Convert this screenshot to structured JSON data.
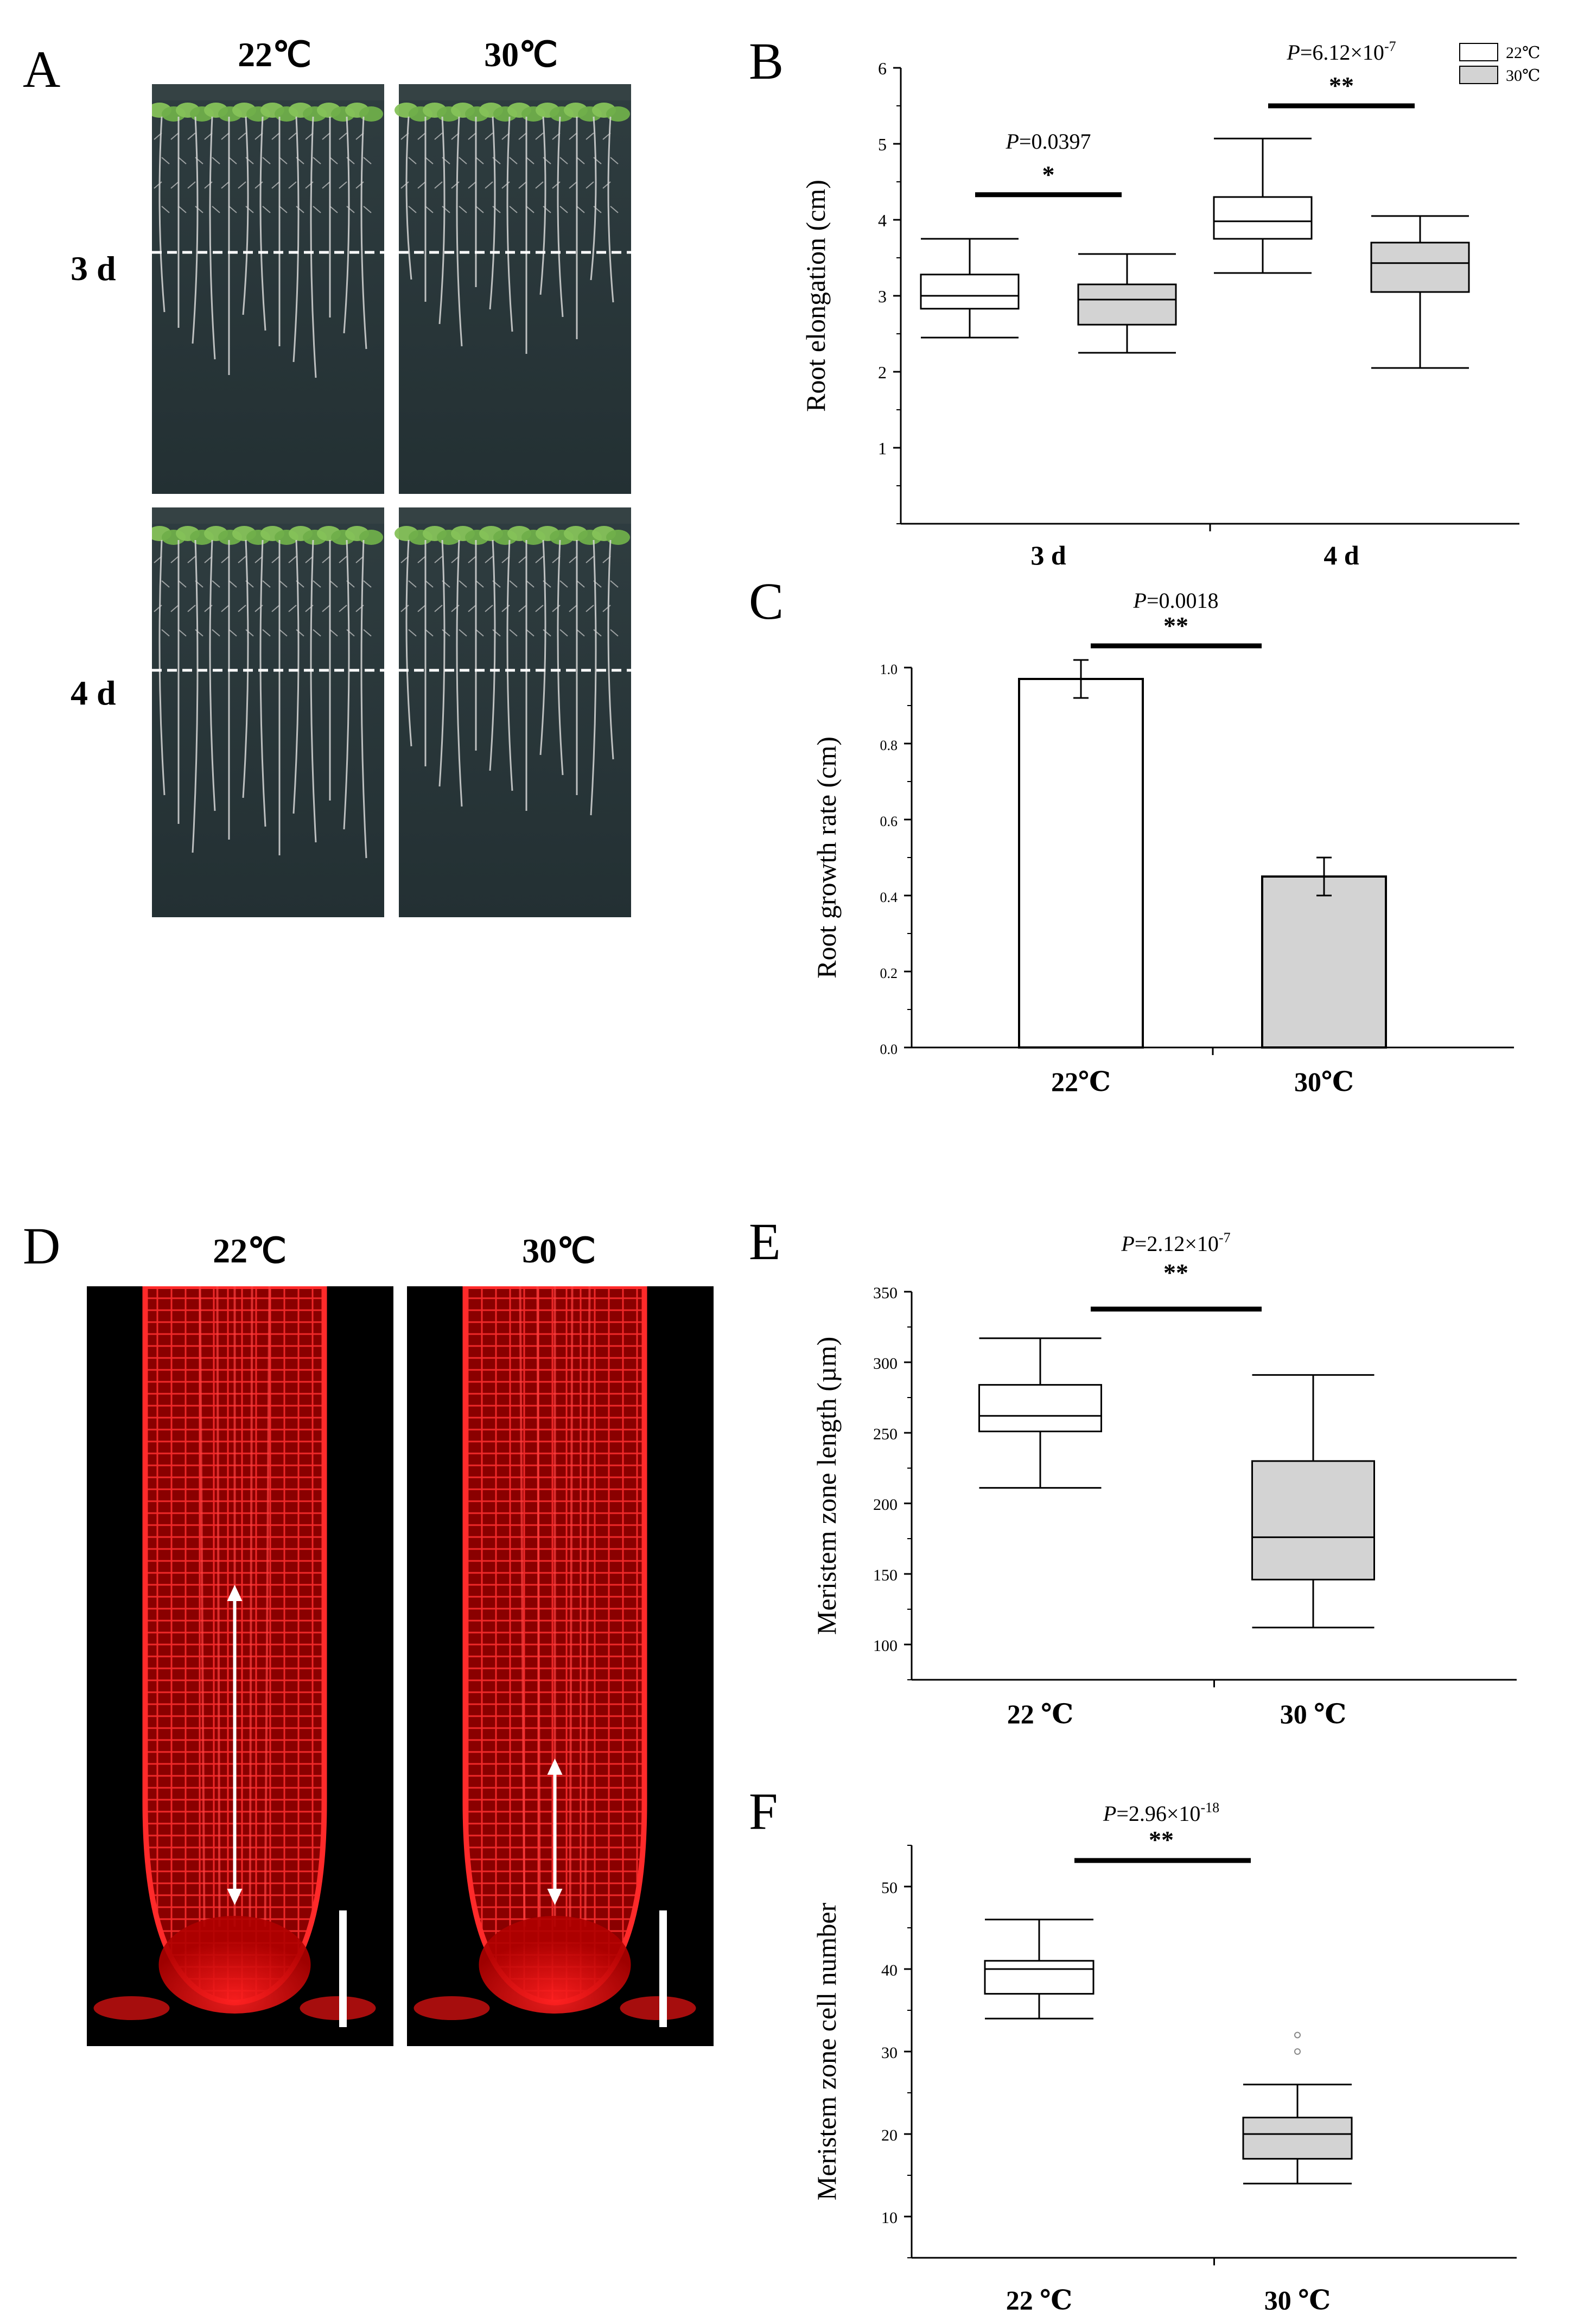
{
  "panelA": {
    "letter": "A",
    "col_labels": [
      "22℃",
      "30℃"
    ],
    "row_labels": [
      "3 d",
      "4 d"
    ]
  },
  "panelD": {
    "letter": "D",
    "col_labels": [
      "22℃",
      "30℃"
    ]
  },
  "colors": {
    "box_22": "#ffffff",
    "box_30": "#d3d3d3",
    "plate_bg": "#283538",
    "fluor_red": "#ff1a1a"
  },
  "chart_data": [
    {
      "id": "B",
      "letter": "B",
      "type": "box",
      "categories": [
        "3 d",
        "4 d"
      ],
      "ylabel": "Root elongation (cm)",
      "ylim": [
        0,
        6
      ],
      "yticks": [
        1,
        2,
        3,
        4,
        5,
        6
      ],
      "legend": {
        "placement": "top-right",
        "entries": [
          "22℃",
          "30℃"
        ]
      },
      "series": [
        {
          "name": "22℃",
          "boxes": [
            {
              "min": 2.45,
              "q1": 2.83,
              "median": 3.0,
              "q3": 3.28,
              "max": 3.75
            },
            {
              "min": 3.3,
              "q1": 3.75,
              "median": 3.98,
              "q3": 4.3,
              "max": 5.07
            }
          ]
        },
        {
          "name": "30℃",
          "boxes": [
            {
              "min": 2.25,
              "q1": 2.62,
              "median": 2.95,
              "q3": 3.15,
              "max": 3.55
            },
            {
              "min": 2.05,
              "q1": 3.05,
              "median": 3.43,
              "q3": 3.7,
              "max": 4.05
            }
          ]
        }
      ],
      "annotations": [
        {
          "group": 0,
          "p_prefix": "P",
          "p_value": "=0.0397",
          "p_exp": "",
          "stars": "*",
          "bar_y": 4.33
        },
        {
          "group": 1,
          "p_prefix": "P",
          "p_value": "=6.12×10",
          "p_exp": "-7",
          "stars": "**",
          "bar_y": 5.5
        }
      ]
    },
    {
      "id": "C",
      "letter": "C",
      "type": "bar",
      "categories": [
        "22℃",
        "30℃"
      ],
      "values": [
        0.97,
        0.45
      ],
      "errors": [
        0.05,
        0.05
      ],
      "ylabel": "Root growth rate (cm)",
      "ylim": [
        0,
        1.0
      ],
      "yticks": [
        "0.0",
        "0.2",
        "0.4",
        "0.6",
        "0.8",
        "1.0"
      ],
      "annotation": {
        "p_prefix": "P",
        "p_value": "=0.0018",
        "p_exp": "",
        "stars": "**"
      }
    },
    {
      "id": "E",
      "letter": "E",
      "type": "box",
      "categories": [
        "22 ℃",
        "30 ℃"
      ],
      "ylabel": "Meristem zone length (µm)",
      "ylim": [
        75,
        350
      ],
      "yticks": [
        100,
        150,
        200,
        250,
        300,
        350
      ],
      "boxes": [
        {
          "min": 211,
          "q1": 251,
          "median": 262,
          "q3": 284,
          "max": 317,
          "fill": "#ffffff"
        },
        {
          "min": 112,
          "q1": 146,
          "median": 176,
          "q3": 230,
          "max": 291,
          "fill": "#d3d3d3"
        }
      ],
      "annotation": {
        "p_prefix": "P",
        "p_value": "=2.12×10",
        "p_exp": "-7",
        "stars": "**"
      }
    },
    {
      "id": "F",
      "letter": "F",
      "type": "box",
      "categories": [
        "22 ℃",
        "30 ℃"
      ],
      "ylabel": "Meristem zone cell number",
      "ylim": [
        5,
        55
      ],
      "yticks": [
        10,
        20,
        30,
        40,
        50
      ],
      "boxes": [
        {
          "min": 34,
          "q1": 37,
          "median": 40,
          "q3": 41,
          "max": 46,
          "fill": "#ffffff",
          "outliers": []
        },
        {
          "min": 14,
          "q1": 17,
          "median": 20,
          "q3": 22,
          "max": 26,
          "fill": "#d3d3d3",
          "outliers": [
            30,
            32
          ]
        }
      ],
      "annotation": {
        "p_prefix": "P",
        "p_value": "=2.96×10",
        "p_exp": "-18",
        "stars": "**"
      }
    }
  ]
}
